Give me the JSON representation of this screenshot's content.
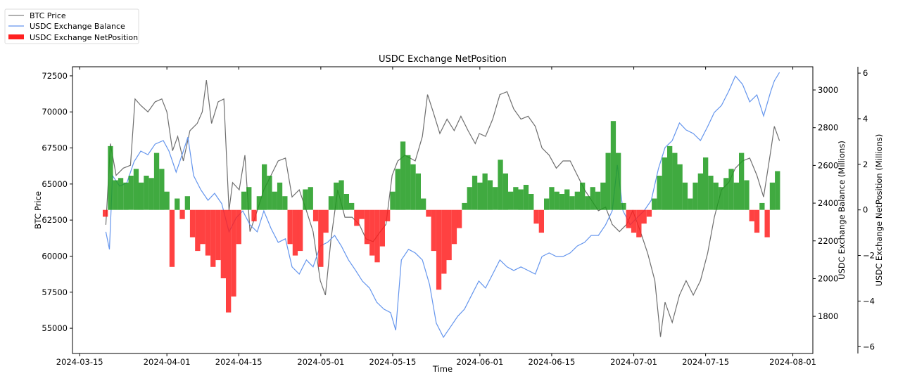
{
  "chart_data": {
    "type": "bar+line",
    "title": "USDC Exchange NetPosition",
    "xlabel": "Time",
    "x_origin": "2024-03-15",
    "xlim_days": [
      -1.4,
      142.9
    ],
    "xticks": [
      {
        "day": 0,
        "label": "2024-03-15"
      },
      {
        "day": 17,
        "label": "2024-04-01"
      },
      {
        "day": 31,
        "label": "2024-04-15"
      },
      {
        "day": 47,
        "label": "2024-05-01"
      },
      {
        "day": 61,
        "label": "2024-05-15"
      },
      {
        "day": 78,
        "label": "2024-06-01"
      },
      {
        "day": 92,
        "label": "2024-06-15"
      },
      {
        "day": 108,
        "label": "2024-07-01"
      },
      {
        "day": 122,
        "label": "2024-07-15"
      },
      {
        "day": 139,
        "label": "2024-08-01"
      }
    ],
    "axes": {
      "price": {
        "label": "BTC Price",
        "ylim": [
          53250,
          73130
        ],
        "ticks": [
          55000,
          57500,
          60000,
          62500,
          65000,
          67500,
          70000,
          72500
        ]
      },
      "balance": {
        "label": "USDC Exchange Balance (Millions)",
        "ylim": [
          1603,
          3123
        ],
        "ticks": [
          1800,
          2000,
          2200,
          2400,
          2600,
          2800,
          3000
        ]
      },
      "net": {
        "label": "USDC Exchange NetPosition (Millions)",
        "ylim": [
          -6.3,
          6.28
        ],
        "ticks": [
          -6,
          -4,
          -2,
          0,
          2,
          4,
          6
        ]
      }
    },
    "legend": {
      "placement": "top-left (outside)",
      "entries": [
        {
          "label": "BTC Price",
          "kind": "line",
          "color": "#808080"
        },
        {
          "label": "USDC Exchange Balance",
          "kind": "line",
          "color": "#6495ed"
        },
        {
          "label": "USDC Exchange NetPosition",
          "kind": "bar",
          "color": "#ff2020"
        }
      ]
    },
    "colors": {
      "price": "#6e6e6e",
      "balance": "#6495ed",
      "net_pos": "#1e9b1e",
      "net_neg": "#ff2020"
    },
    "series": [
      {
        "name": "BTC Price",
        "axis": "price",
        "points": [
          [
            5.1,
            62170
          ],
          [
            6.0,
            67800
          ],
          [
            7.1,
            65600
          ],
          [
            8.5,
            66100
          ],
          [
            9.9,
            66300
          ],
          [
            10.8,
            70900
          ],
          [
            11.9,
            70450
          ],
          [
            13.3,
            70000
          ],
          [
            14.7,
            70700
          ],
          [
            16.0,
            70900
          ],
          [
            17.0,
            70000
          ],
          [
            18.1,
            67300
          ],
          [
            19.1,
            68300
          ],
          [
            20.2,
            66600
          ],
          [
            21.5,
            68700
          ],
          [
            22.9,
            69200
          ],
          [
            23.9,
            70000
          ],
          [
            24.7,
            72200
          ],
          [
            25.7,
            69200
          ],
          [
            27.0,
            70700
          ],
          [
            28.1,
            70900
          ],
          [
            29.1,
            63150
          ],
          [
            29.8,
            65100
          ],
          [
            31.1,
            64600
          ],
          [
            32.2,
            67000
          ],
          [
            33.2,
            61700
          ],
          [
            34.6,
            63150
          ],
          [
            35.9,
            64600
          ],
          [
            37.3,
            65600
          ],
          [
            38.7,
            66600
          ],
          [
            40.1,
            66800
          ],
          [
            41.4,
            64100
          ],
          [
            42.8,
            64600
          ],
          [
            44.2,
            63150
          ],
          [
            45.5,
            61700
          ],
          [
            46.9,
            58300
          ],
          [
            47.9,
            57300
          ],
          [
            49.0,
            61200
          ],
          [
            50.3,
            64600
          ],
          [
            51.7,
            62700
          ],
          [
            53.1,
            62700
          ],
          [
            54.5,
            62200
          ],
          [
            55.8,
            61200
          ],
          [
            57.2,
            61000
          ],
          [
            58.6,
            61700
          ],
          [
            59.7,
            62200
          ],
          [
            60.9,
            65600
          ],
          [
            62.0,
            66600
          ],
          [
            63.4,
            67000
          ],
          [
            65.4,
            66600
          ],
          [
            66.8,
            68300
          ],
          [
            67.8,
            71200
          ],
          [
            68.9,
            70000
          ],
          [
            70.2,
            68500
          ],
          [
            71.6,
            69500
          ],
          [
            73.0,
            68700
          ],
          [
            74.3,
            69700
          ],
          [
            75.7,
            68700
          ],
          [
            77.1,
            67800
          ],
          [
            77.9,
            68500
          ],
          [
            79.1,
            68300
          ],
          [
            80.5,
            69500
          ],
          [
            81.9,
            71200
          ],
          [
            83.3,
            71400
          ],
          [
            84.6,
            70200
          ],
          [
            86.0,
            69500
          ],
          [
            87.4,
            69700
          ],
          [
            88.8,
            69000
          ],
          [
            90.1,
            67500
          ],
          [
            91.5,
            67000
          ],
          [
            92.9,
            66100
          ],
          [
            94.2,
            66600
          ],
          [
            95.6,
            66600
          ],
          [
            97.0,
            65600
          ],
          [
            98.4,
            64600
          ],
          [
            99.7,
            63900
          ],
          [
            101.1,
            63150
          ],
          [
            102.5,
            63400
          ],
          [
            103.8,
            62200
          ],
          [
            105.2,
            61700
          ],
          [
            106.6,
            62200
          ],
          [
            107.8,
            63150
          ],
          [
            109.3,
            61700
          ],
          [
            110.7,
            60200
          ],
          [
            112.1,
            58300
          ],
          [
            113.2,
            54400
          ],
          [
            114.1,
            56800
          ],
          [
            115.5,
            55400
          ],
          [
            116.9,
            57300
          ],
          [
            118.2,
            58300
          ],
          [
            119.6,
            57300
          ],
          [
            121.0,
            58300
          ],
          [
            122.4,
            60200
          ],
          [
            123.7,
            62700
          ],
          [
            125.1,
            64600
          ],
          [
            126.5,
            65100
          ],
          [
            127.8,
            66100
          ],
          [
            129.2,
            66600
          ],
          [
            130.6,
            66800
          ],
          [
            132.0,
            65600
          ],
          [
            133.3,
            64100
          ],
          [
            134.7,
            67300
          ],
          [
            135.4,
            69000
          ],
          [
            136.4,
            68000
          ]
        ]
      },
      {
        "name": "USDC Exchange Balance",
        "axis": "balance",
        "points": [
          [
            5.1,
            2248
          ],
          [
            5.8,
            2155
          ],
          [
            6.4,
            2546
          ],
          [
            7.8,
            2490
          ],
          [
            9.2,
            2508
          ],
          [
            10.6,
            2620
          ],
          [
            11.9,
            2676
          ],
          [
            13.3,
            2657
          ],
          [
            14.7,
            2713
          ],
          [
            16.3,
            2732
          ],
          [
            17.4,
            2676
          ],
          [
            18.8,
            2564
          ],
          [
            20.2,
            2676
          ],
          [
            21.1,
            2750
          ],
          [
            22.2,
            2546
          ],
          [
            23.6,
            2471
          ],
          [
            25.0,
            2415
          ],
          [
            26.3,
            2452
          ],
          [
            27.7,
            2397
          ],
          [
            29.1,
            2248
          ],
          [
            30.5,
            2322
          ],
          [
            31.8,
            2359
          ],
          [
            33.2,
            2285
          ],
          [
            34.6,
            2248
          ],
          [
            35.9,
            2359
          ],
          [
            37.3,
            2266
          ],
          [
            38.7,
            2192
          ],
          [
            40.1,
            2211
          ],
          [
            41.4,
            2062
          ],
          [
            42.8,
            2024
          ],
          [
            44.2,
            2099
          ],
          [
            45.5,
            2062
          ],
          [
            46.9,
            2173
          ],
          [
            48.3,
            2192
          ],
          [
            49.7,
            2229
          ],
          [
            51.0,
            2173
          ],
          [
            52.4,
            2099
          ],
          [
            53.8,
            2043
          ],
          [
            55.1,
            1987
          ],
          [
            56.5,
            1950
          ],
          [
            57.9,
            1875
          ],
          [
            59.3,
            1838
          ],
          [
            60.6,
            1820
          ],
          [
            61.6,
            1726
          ],
          [
            62.7,
            2099
          ],
          [
            64.1,
            2155
          ],
          [
            65.4,
            2136
          ],
          [
            66.8,
            2099
          ],
          [
            68.2,
            1968
          ],
          [
            69.5,
            1764
          ],
          [
            70.9,
            1689
          ],
          [
            72.3,
            1745
          ],
          [
            73.7,
            1801
          ],
          [
            75.0,
            1838
          ],
          [
            76.4,
            1913
          ],
          [
            77.8,
            1987
          ],
          [
            79.1,
            1950
          ],
          [
            80.5,
            2024
          ],
          [
            81.9,
            2099
          ],
          [
            83.3,
            2062
          ],
          [
            84.6,
            2043
          ],
          [
            86.0,
            2062
          ],
          [
            87.4,
            2043
          ],
          [
            88.8,
            2024
          ],
          [
            90.1,
            2117
          ],
          [
            91.5,
            2136
          ],
          [
            92.9,
            2117
          ],
          [
            94.2,
            2117
          ],
          [
            95.6,
            2136
          ],
          [
            97.0,
            2173
          ],
          [
            98.4,
            2192
          ],
          [
            99.7,
            2229
          ],
          [
            101.1,
            2229
          ],
          [
            102.5,
            2285
          ],
          [
            103.8,
            2359
          ],
          [
            104.8,
            2602
          ],
          [
            105.9,
            2359
          ],
          [
            107.3,
            2285
          ],
          [
            108.6,
            2322
          ],
          [
            110.0,
            2359
          ],
          [
            111.4,
            2415
          ],
          [
            112.8,
            2583
          ],
          [
            114.1,
            2695
          ],
          [
            115.5,
            2732
          ],
          [
            116.9,
            2825
          ],
          [
            118.2,
            2788
          ],
          [
            119.6,
            2769
          ],
          [
            121.0,
            2732
          ],
          [
            122.4,
            2806
          ],
          [
            123.7,
            2881
          ],
          [
            125.1,
            2918
          ],
          [
            126.5,
            2993
          ],
          [
            127.8,
            3074
          ],
          [
            129.2,
            3030
          ],
          [
            130.6,
            2937
          ],
          [
            132.0,
            2974
          ],
          [
            133.3,
            2862
          ],
          [
            134.7,
            2993
          ],
          [
            135.4,
            3048
          ],
          [
            136.4,
            3093
          ]
        ]
      },
      {
        "name": "USDC Exchange NetPosition",
        "axis": "net",
        "start_day": 5,
        "step_days": 1,
        "values": [
          -0.3,
          2.8,
          1.3,
          1.4,
          1.2,
          1.5,
          1.8,
          1.2,
          1.5,
          1.4,
          2.5,
          1.8,
          0.8,
          -2.5,
          0.5,
          -0.4,
          0.6,
          -1.2,
          -1.8,
          -1.5,
          -2.0,
          -2.5,
          -2.2,
          -3.0,
          -4.5,
          -3.8,
          -1.5,
          0.8,
          1.0,
          -0.5,
          0.6,
          2.0,
          1.5,
          0.8,
          1.2,
          0.6,
          -1.5,
          -2.0,
          -1.8,
          0.9,
          1.0,
          -0.5,
          -2.5,
          -1.0,
          0.6,
          1.2,
          1.3,
          0.7,
          0.3,
          -0.7,
          -0.4,
          -1.5,
          -2.0,
          -2.3,
          -1.6,
          -0.5,
          0.8,
          1.8,
          3.0,
          2.4,
          2.0,
          1.6,
          0.5,
          -0.3,
          -1.8,
          -3.5,
          -2.8,
          -2.2,
          -1.5,
          -0.8,
          0.3,
          1.0,
          1.5,
          1.2,
          1.6,
          1.3,
          1.0,
          2.2,
          1.6,
          0.8,
          1.0,
          0.9,
          1.1,
          0.7,
          -0.6,
          -1.0,
          0.5,
          1.0,
          0.8,
          0.7,
          0.9,
          0.6,
          0.8,
          1.2,
          0.6,
          1.0,
          0.8,
          1.2,
          2.5,
          3.9,
          2.5,
          0.3,
          -0.8,
          -1.0,
          -1.2,
          -0.6,
          -0.3,
          0.5,
          1.5,
          2.3,
          2.8,
          2.5,
          2.0,
          1.2,
          0.5,
          1.2,
          1.6,
          2.3,
          1.5,
          1.2,
          1.0,
          1.4,
          1.8,
          1.2,
          2.5,
          1.3,
          -0.5,
          -1.0,
          0.3,
          -1.2,
          1.2,
          1.7
        ]
      }
    ]
  }
}
